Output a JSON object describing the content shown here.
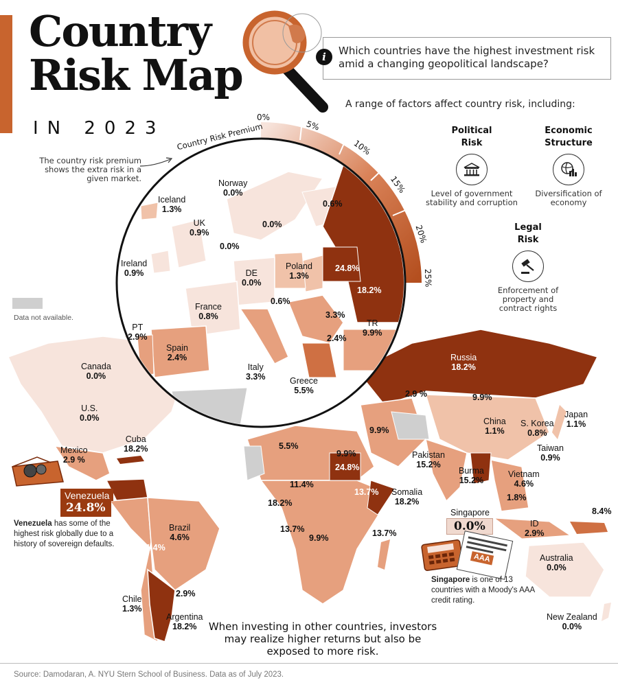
{
  "header": {
    "title_line1": "Country",
    "title_line2": "Risk Map",
    "subtitle": "IN 2023"
  },
  "question": "Which countries have the highest investment risk amid a changing geopolitical landscape?",
  "factors_intro": "A range of factors affect country risk, including:",
  "factors": [
    {
      "name_line1": "Political",
      "name_line2": "Risk",
      "desc": "Level of government stability and corruption",
      "icon": "government-building-icon"
    },
    {
      "name_line1": "Economic",
      "name_line2": "Structure",
      "desc": "Diversification of economy",
      "icon": "economy-globe-icon"
    },
    {
      "name_line1": "Legal",
      "name_line2": "Risk",
      "desc": "Enforcement of property and contract rights",
      "icon": "gavel-icon"
    }
  ],
  "scale": {
    "title": "Country Risk Premium",
    "ticks": [
      "0%",
      "5%",
      "10%",
      "15%",
      "20%",
      "25%"
    ],
    "note": "The country risk premium shows the extra risk in a given market."
  },
  "legend": {
    "not_available": "Data not available."
  },
  "colors": {
    "p0": "#f7e4dc",
    "p1": "#f0c2a9",
    "p2": "#e6a07e",
    "p3": "#cf7043",
    "p4": "#b44f1f",
    "p5": "#8f3210",
    "na": "#cfcfcf",
    "accent": "#c8642e"
  },
  "europe_labels": [
    {
      "name": "Iceland",
      "value": "1.3%"
    },
    {
      "name": "Norway",
      "value": "0.0%"
    },
    {
      "name": "UK",
      "value": "0.9%"
    },
    {
      "name": "Ireland",
      "value": "0.9%"
    },
    {
      "name": "DE",
      "value": "0.0%"
    },
    {
      "name": "Poland",
      "value": "1.3%"
    },
    {
      "name": "France",
      "value": "0.8%"
    },
    {
      "name": "PT",
      "value": "2.9%"
    },
    {
      "name": "Spain",
      "value": "2.4%"
    },
    {
      "name": "Italy",
      "value": "3.3%"
    },
    {
      "name": "Greece",
      "value": "5.5%"
    },
    {
      "name": "TR",
      "value": "9.9%"
    }
  ],
  "europe_values": [
    "0.6%",
    "0.0%",
    "0.0%",
    "24.8%",
    "18.2%",
    "0.6%",
    "3.3%",
    "2.4%"
  ],
  "world_labels": [
    {
      "name": "Canada",
      "value": "0.0%"
    },
    {
      "name": "U.S.",
      "value": "0.0%"
    },
    {
      "name": "Mexico",
      "value": "2.9 %"
    },
    {
      "name": "Cuba",
      "value": "18.2%"
    },
    {
      "name": "Brazil",
      "value": "4.6%"
    },
    {
      "name": "Chile",
      "value": "1.3%"
    },
    {
      "name": "Argentina",
      "value": "18.2%"
    },
    {
      "name": "Russia",
      "value": "18.2%"
    },
    {
      "name": "China",
      "value": "1.1%"
    },
    {
      "name": "S. Korea",
      "value": "0.8%"
    },
    {
      "name": "Japan",
      "value": "1.1%"
    },
    {
      "name": "Taiwan",
      "value": "0.9%"
    },
    {
      "name": "Pakistan",
      "value": "15.2%"
    },
    {
      "name": "Burma",
      "value": "15.2%"
    },
    {
      "name": "Vietnam",
      "value": "4.6%"
    },
    {
      "name": "Somalia",
      "value": "18.2%"
    },
    {
      "name": "ID",
      "value": "2.9%"
    },
    {
      "name": "Australia",
      "value": "0.0%"
    },
    {
      "name": "New Zealand",
      "value": "0.0%"
    }
  ],
  "world_values": [
    "2.9 %",
    "9.9%",
    "9.9%",
    "5.5%",
    "9.9%",
    "24.8%",
    "11.4%",
    "18.2%",
    "13.7%",
    "13.7%",
    "9.9%",
    "13.7%",
    "11.4%",
    "2.9%",
    "1.8%",
    "8.4%"
  ],
  "venezuela": {
    "name": "Venezuela",
    "value": "24.8%",
    "note_bold": "Venezuela",
    "note_rest": " has some of the highest risk globally due to a history of sovereign defaults."
  },
  "singapore": {
    "name": "Singapore",
    "value": "0.0%",
    "note_bold": "Singapore",
    "note_rest": " is one of 13 countries with a Moody's AAA credit rating.",
    "card_text": "AAA"
  },
  "tagline": "When investing in other countries, investors may realize higher returns but also be exposed to more risk.",
  "source": "Source: Damodaran, A. NYU Stern School of Business. Data as of July 2023."
}
